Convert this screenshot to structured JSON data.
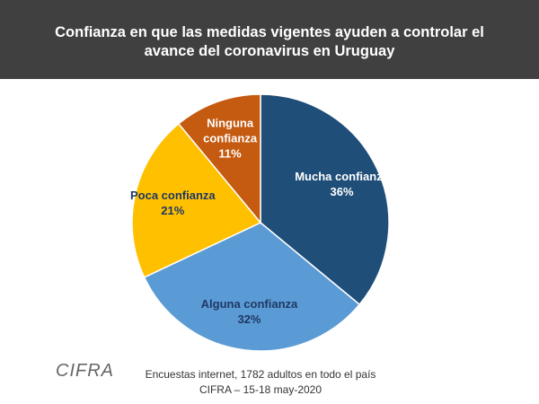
{
  "chart_data": {
    "type": "pie",
    "title": "Confianza en que las medidas vigentes ayuden a controlar el avance del coronavirus en Uruguay",
    "categories": [
      "Mucha confianza",
      "Alguna confianza",
      "Poca confianza",
      "Ninguna confianza"
    ],
    "values": [
      36,
      32,
      21,
      11
    ],
    "value_labels": [
      "36%",
      "32%",
      "21%",
      "11%"
    ],
    "colors": [
      "#1f4e79",
      "#5b9bd5",
      "#ffc000",
      "#c55a11"
    ],
    "label_colors": [
      "#ffffff",
      "#1f3864",
      "#1f3864",
      "#ffffff"
    ],
    "notes": [
      "Encuestas internet, 1782 adultos en todo el país",
      "CIFRA – 15-18 may-2020"
    ],
    "logo": "CIFRA"
  }
}
